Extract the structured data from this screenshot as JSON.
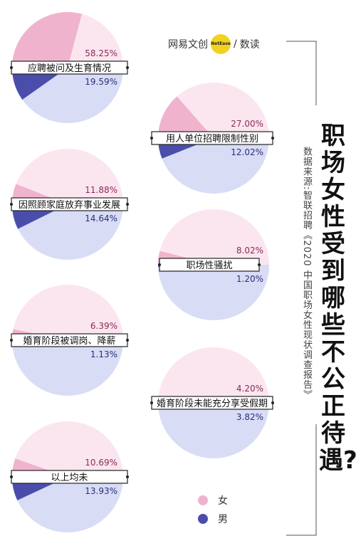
{
  "brand": {
    "name": "网易文创",
    "badge": "NetEase",
    "slash": "/",
    "sub": "数读"
  },
  "title": "职场女性受到哪些不公正待遇?",
  "source": "数据来源:智联招聘《2020 中国职场女性现状调查报告》",
  "colors": {
    "female": "#f0b3cd",
    "female_light": "#fbe6ef",
    "male": "#4a4eaa",
    "male_light": "#d8dcf5",
    "female_text": "#8a2a5a",
    "male_text": "#2a2e7a",
    "frame": "#555555"
  },
  "legend": [
    {
      "label": "女",
      "color": "#f0b3cd"
    },
    {
      "label": "男",
      "color": "#4a4eaa"
    }
  ],
  "chart_data": {
    "type": "pie",
    "units": "%",
    "series": [
      {
        "name": "女",
        "color": "#f0b3cd"
      },
      {
        "name": "男",
        "color": "#4a4eaa"
      }
    ],
    "items": [
      {
        "category": "应聘被问及生育情况",
        "female": 58.25,
        "male": 19.59,
        "female_label": "58.25%",
        "male_label": "19.59%"
      },
      {
        "category": "用人单位招聘限制性别",
        "female": 27.0,
        "male": 12.02,
        "female_label": "27.00%",
        "male_label": "12.02%"
      },
      {
        "category": "因照顾家庭放弃事业发展",
        "female": 11.88,
        "male": 14.64,
        "female_label": "11.88%",
        "male_label": "14.64%"
      },
      {
        "category": "职场性骚扰",
        "female": 8.02,
        "male": 1.2,
        "female_label": "8.02%",
        "male_label": "1.20%"
      },
      {
        "category": "婚育阶段被调岗、降薪",
        "female": 6.39,
        "male": 1.13,
        "female_label": "6.39%",
        "male_label": "1.13%"
      },
      {
        "category": "婚育阶段未能充分享受假期",
        "female": 4.2,
        "male": 3.82,
        "female_label": "4.20%",
        "male_label": "3.82%"
      },
      {
        "category": "以上均未",
        "female": 10.69,
        "male": 13.93,
        "female_label": "10.69%",
        "male_label": "13.93%"
      }
    ]
  }
}
